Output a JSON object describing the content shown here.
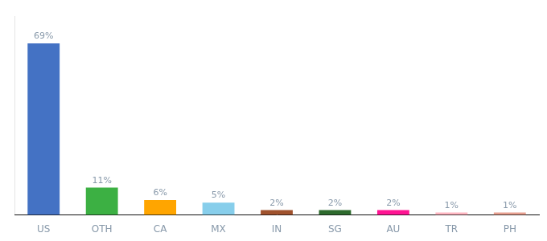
{
  "chart_data": {
    "type": "bar",
    "categories": [
      "US",
      "OTH",
      "CA",
      "MX",
      "IN",
      "SG",
      "AU",
      "TR",
      "PH"
    ],
    "values": [
      69,
      11,
      6,
      5,
      2,
      2,
      2,
      1,
      1
    ],
    "value_labels": [
      "69%",
      "11%",
      "6%",
      "5%",
      "2%",
      "2%",
      "2%",
      "1%",
      "1%"
    ],
    "colors": [
      "#4472C4",
      "#3CB043",
      "#FFA500",
      "#87CEEB",
      "#A0522D",
      "#2D6A2D",
      "#FF1493",
      "#FFB6C1",
      "#E8A090"
    ],
    "ylim": [
      0,
      80
    ],
    "grid": false,
    "data_labels": true,
    "tick_labels": "x"
  }
}
